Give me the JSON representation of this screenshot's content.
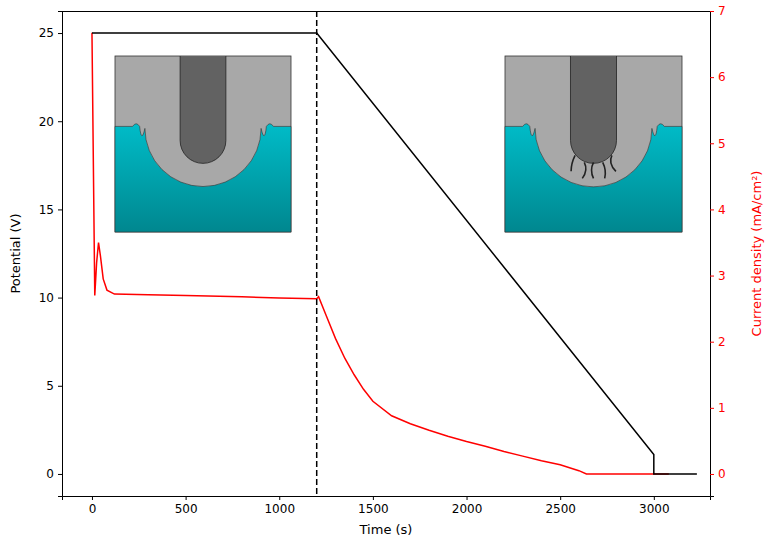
{
  "chart_data": {
    "type": "line",
    "x_label": "Time (s)",
    "y_label": "Potential (V)",
    "y2_label": "Current density (mA/cm²)",
    "xlim": [
      -160,
      3300
    ],
    "xticks": [
      0,
      500,
      1000,
      1500,
      2000,
      2500,
      3000
    ],
    "ylim": [
      -1.25,
      26.25
    ],
    "yticks": [
      0,
      5,
      10,
      15,
      20,
      25
    ],
    "y2lim": [
      -0.333,
      7
    ],
    "y2ticks": [
      0,
      1,
      2,
      3,
      4,
      5,
      6,
      7
    ],
    "vline": 1200,
    "series": [
      {
        "color": "#ff0000",
        "axis": "y2",
        "x": [
          0,
          15,
          25,
          35,
          45,
          60,
          80,
          120,
          300,
          500,
          800,
          1000,
          1200,
          1210,
          1250,
          1300,
          1350,
          1400,
          1450,
          1500,
          1600,
          1700,
          1800,
          1900,
          2000,
          2100,
          2200,
          2300,
          2400,
          2500,
          2600,
          2640,
          3080
        ],
        "values": [
          6.67,
          2.7,
          3.2,
          3.5,
          3.3,
          2.95,
          2.78,
          2.72,
          2.71,
          2.7,
          2.68,
          2.66,
          2.65,
          2.68,
          2.4,
          2.05,
          1.75,
          1.5,
          1.28,
          1.1,
          0.88,
          0.76,
          0.66,
          0.57,
          0.49,
          0.42,
          0.34,
          0.27,
          0.2,
          0.14,
          0.05,
          0.0,
          0.0
        ]
      },
      {
        "color": "#000000",
        "x": [
          0,
          1200,
          3000,
          3000,
          3230
        ],
        "values": [
          25,
          25,
          1.1,
          0,
          0
        ]
      }
    ]
  }
}
